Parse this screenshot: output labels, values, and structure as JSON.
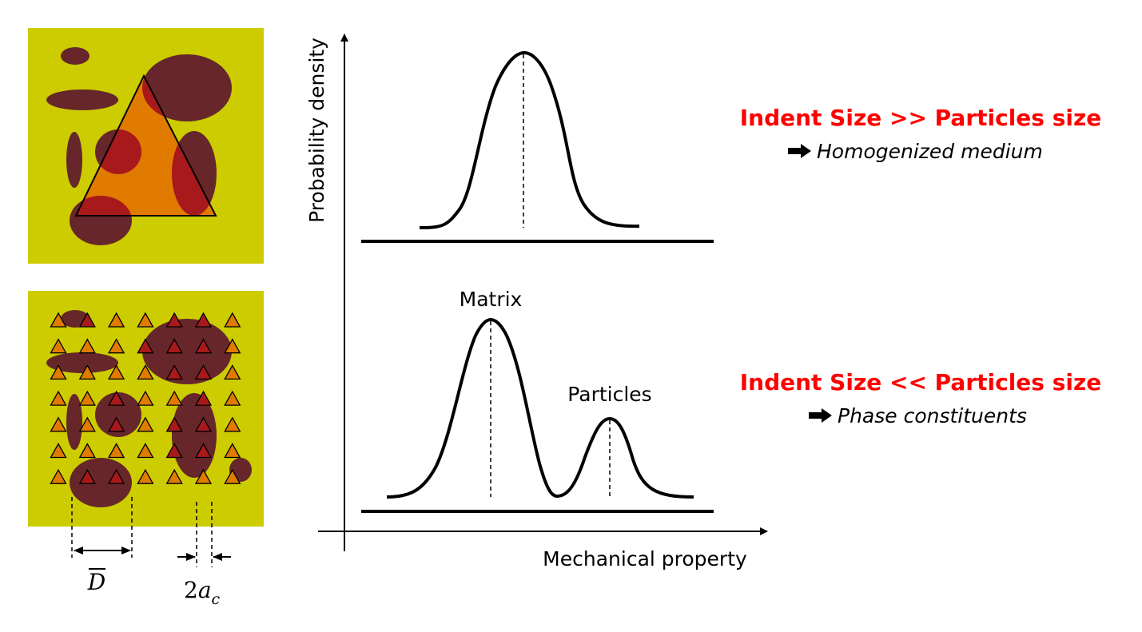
{
  "colors": {
    "matrix": "#cccc00",
    "particle": "#66262a",
    "indent_fill": "#e07b00",
    "indent_overlap": "#a8191c",
    "highlight_text": "#ff0000",
    "line": "#000000"
  },
  "panels": {
    "top": {
      "name": "large-indent-panel"
    },
    "bottom": {
      "name": "small-indent-grid-panel",
      "grid_rows": 7,
      "grid_cols": 7
    }
  },
  "dimensions": {
    "particle_diameter_label": "D",
    "indent_size_label_number": "2",
    "indent_size_label_var": "a",
    "indent_size_label_sub": "c"
  },
  "graph": {
    "y_axis_label": "Probability density",
    "x_axis_label": "Mechanical property",
    "peak_matrix_label": "Matrix",
    "peak_particles_label": "Particles"
  },
  "annotations": {
    "top": {
      "heading": "Indent Size >> Particles size",
      "arrow_icon": "right-arrow-icon",
      "result": "Homogenized medium"
    },
    "bottom": {
      "heading": "Indent Size << Particles size",
      "arrow_icon": "right-arrow-icon",
      "result": "Phase constituents"
    }
  }
}
